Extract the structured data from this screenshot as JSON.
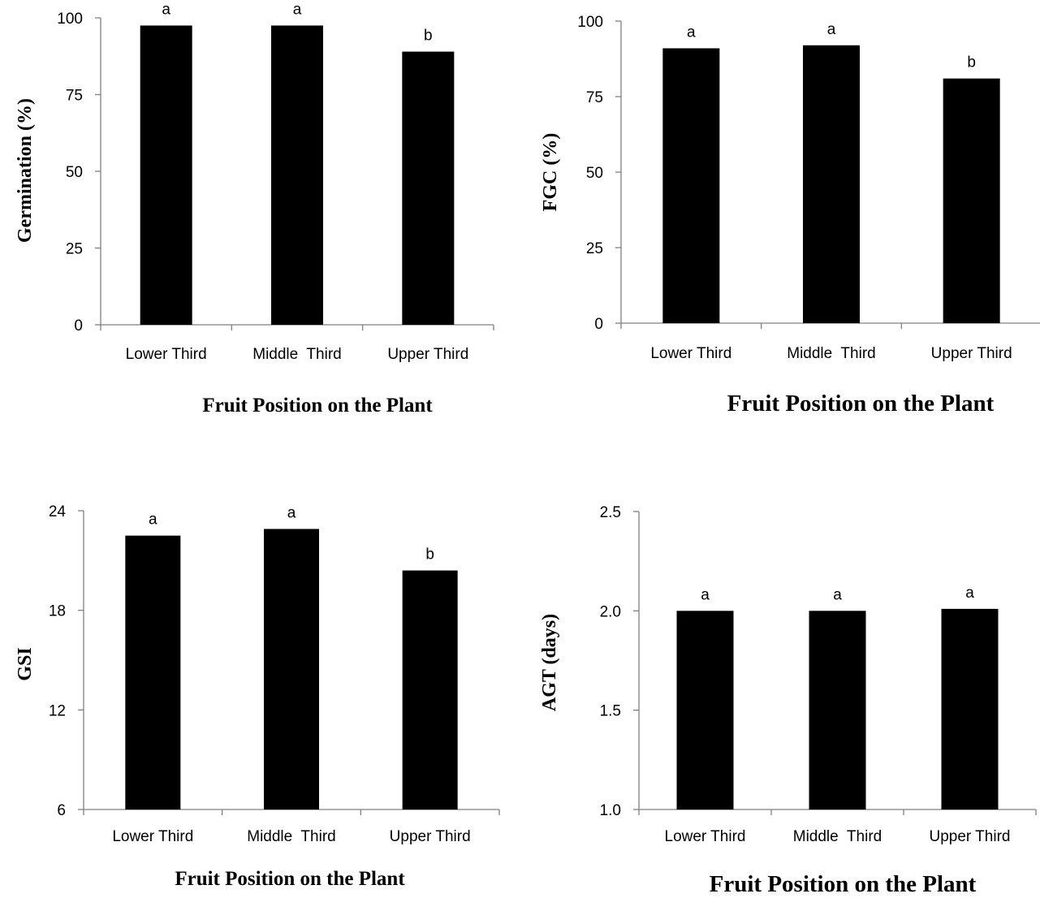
{
  "chart_data": [
    {
      "type": "bar",
      "categories": [
        "Lower Third",
        "Middle  Third",
        "Upper Third"
      ],
      "values": [
        97.5,
        97.5,
        89
      ],
      "significance_letters": [
        "a",
        "a",
        "b"
      ],
      "ylabel": "Germination (%)",
      "xlabel": "Fruit Position on the Plant",
      "ylim": [
        0,
        100
      ],
      "yticks": [
        "0",
        "25",
        "50",
        "75",
        "100"
      ],
      "grid": false
    },
    {
      "type": "bar",
      "categories": [
        "Lower Third",
        "Middle  Third",
        "Upper Third"
      ],
      "values": [
        91,
        92,
        81
      ],
      "significance_letters": [
        "a",
        "a",
        "b"
      ],
      "ylabel": "FGC (%)",
      "xlabel": "Fruit Position on the Plant",
      "ylim": [
        0,
        100
      ],
      "yticks": [
        "0",
        "25",
        "50",
        "75",
        "100"
      ],
      "grid": false
    },
    {
      "type": "bar",
      "categories": [
        "Lower Third",
        "Middle  Third",
        "Upper Third"
      ],
      "values": [
        22.5,
        22.9,
        20.4
      ],
      "significance_letters": [
        "a",
        "a",
        "b"
      ],
      "ylabel": "GSI",
      "xlabel": "Fruit Position on the Plant",
      "ylim": [
        6,
        24
      ],
      "yticks": [
        "6",
        "12",
        "18",
        "24"
      ],
      "grid": false
    },
    {
      "type": "bar",
      "categories": [
        "Lower Third",
        "Middle  Third",
        "Upper Third"
      ],
      "values": [
        2.0,
        2.0,
        2.01
      ],
      "significance_letters": [
        "a",
        "a",
        "a"
      ],
      "ylabel": "AGT (days)",
      "xlabel": "Fruit Position on the Plant",
      "ylim": [
        1.0,
        2.5
      ],
      "yticks": [
        "1.0",
        "1.5",
        "2.0",
        "2.5"
      ],
      "grid": false
    }
  ]
}
